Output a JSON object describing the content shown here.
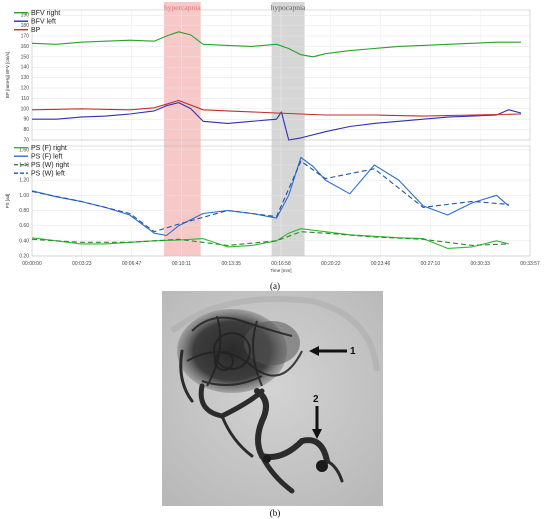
{
  "figure": {
    "caption_a": "(a)",
    "caption_b": "(b)"
  },
  "chart_data": [
    {
      "type": "line",
      "panel": "upper",
      "ylabel": "BP [mmHg] BFV [cm/s]",
      "yticks": [
        190,
        180,
        170,
        160,
        150,
        140,
        130,
        120,
        110,
        100,
        90,
        80,
        70
      ],
      "ylim": [
        70,
        195
      ],
      "x_ticks": [
        "00:00:00",
        "00:03:23",
        "00:06:47",
        "00:10:11",
        "00:13:35",
        "00:16:58",
        "00:20:22",
        "00:23:46",
        "00:27:10",
        "00:30:33",
        "00:33:57"
      ],
      "xlim": [
        0,
        2037
      ],
      "legend_position": "top-left",
      "annotations": [
        {
          "label": "hypercapnia",
          "x_start": 540,
          "x_end": 690,
          "color": "#f4b6b6",
          "text_color": "#e07070"
        },
        {
          "label": "hypocapnia",
          "x_start": 980,
          "x_end": 1115,
          "color": "#c8c8c8",
          "text_color": "#555555"
        }
      ],
      "series": [
        {
          "name": "BFV right",
          "color": "#2aa12a",
          "x": [
            0,
            100,
            200,
            300,
            400,
            500,
            550,
            600,
            650,
            700,
            800,
            900,
            1000,
            1050,
            1100,
            1150,
            1200,
            1300,
            1400,
            1500,
            1600,
            1700,
            1800,
            1900,
            2000
          ],
          "y": [
            163,
            162,
            164,
            165,
            166,
            165,
            170,
            174,
            171,
            162,
            161,
            160,
            162,
            158,
            152,
            150,
            153,
            156,
            158,
            160,
            161,
            162,
            163,
            164,
            164
          ]
        },
        {
          "name": "BFV left",
          "color": "#3030b0",
          "x": [
            0,
            100,
            200,
            300,
            400,
            500,
            550,
            600,
            650,
            700,
            800,
            900,
            1000,
            1020,
            1050,
            1100,
            1200,
            1300,
            1400,
            1500,
            1600,
            1700,
            1800,
            1900,
            1950,
            2000
          ],
          "y": [
            90,
            90,
            92,
            93,
            95,
            98,
            103,
            106,
            100,
            88,
            86,
            88,
            90,
            97,
            70,
            72,
            78,
            83,
            86,
            88,
            90,
            92,
            93,
            94,
            99,
            96
          ]
        },
        {
          "name": "BP",
          "color": "#c03030",
          "x": [
            0,
            200,
            400,
            500,
            600,
            700,
            800,
            900,
            1000,
            1100,
            1200,
            1400,
            1600,
            1800,
            2000
          ],
          "y": [
            99,
            100,
            99,
            101,
            108,
            99,
            98,
            97,
            96,
            95,
            94,
            94,
            93,
            94,
            95
          ]
        }
      ]
    },
    {
      "type": "line",
      "panel": "lower",
      "ylabel": "PS [ad]",
      "yticks": [
        1.6,
        1.4,
        1.2,
        1.0,
        0.8,
        0.6,
        0.4,
        0.2
      ],
      "ylim": [
        0.2,
        1.65
      ],
      "xlabel": "Time [mm]",
      "series": [
        {
          "name": "PS (F) right",
          "color": "#33b833",
          "x": [
            0,
            100,
            200,
            300,
            400,
            500,
            600,
            700,
            800,
            900,
            1000,
            1050,
            1100,
            1200,
            1300,
            1400,
            1500,
            1600,
            1700,
            1800,
            1900,
            1950
          ],
          "y": [
            0.44,
            0.4,
            0.36,
            0.36,
            0.38,
            0.4,
            0.41,
            0.43,
            0.32,
            0.34,
            0.4,
            0.5,
            0.56,
            0.52,
            0.48,
            0.46,
            0.44,
            0.43,
            0.3,
            0.32,
            0.4,
            0.36
          ]
        },
        {
          "name": "PS (F) left",
          "color": "#2c6fd0",
          "x": [
            0,
            100,
            200,
            300,
            400,
            500,
            550,
            600,
            700,
            800,
            900,
            1000,
            1050,
            1100,
            1150,
            1200,
            1300,
            1400,
            1500,
            1600,
            1700,
            1800,
            1900,
            1950
          ],
          "y": [
            1.06,
            0.98,
            0.92,
            0.84,
            0.74,
            0.5,
            0.47,
            0.6,
            0.76,
            0.8,
            0.76,
            0.7,
            1.0,
            1.5,
            1.38,
            1.2,
            1.02,
            1.4,
            1.2,
            0.86,
            0.74,
            0.9,
            1.0,
            0.86
          ]
        },
        {
          "name": "PS (W) right",
          "color": "#2a8a2a",
          "dashed": true,
          "x": [
            0,
            200,
            400,
            600,
            800,
            1000,
            1100,
            1200,
            1400,
            1600,
            1800,
            1950
          ],
          "y": [
            0.42,
            0.38,
            0.38,
            0.42,
            0.34,
            0.4,
            0.52,
            0.5,
            0.45,
            0.42,
            0.34,
            0.36
          ]
        },
        {
          "name": "PS (W) left",
          "color": "#1e55a8",
          "dashed": true,
          "x": [
            0,
            200,
            400,
            500,
            600,
            800,
            1000,
            1100,
            1200,
            1400,
            1600,
            1800,
            1950
          ],
          "y": [
            1.05,
            0.92,
            0.76,
            0.52,
            0.62,
            0.8,
            0.72,
            1.45,
            1.22,
            1.35,
            0.84,
            0.92,
            0.88
          ]
        }
      ]
    }
  ],
  "angiogram": {
    "arrow_1_label": "1",
    "arrow_2_label": "2"
  }
}
